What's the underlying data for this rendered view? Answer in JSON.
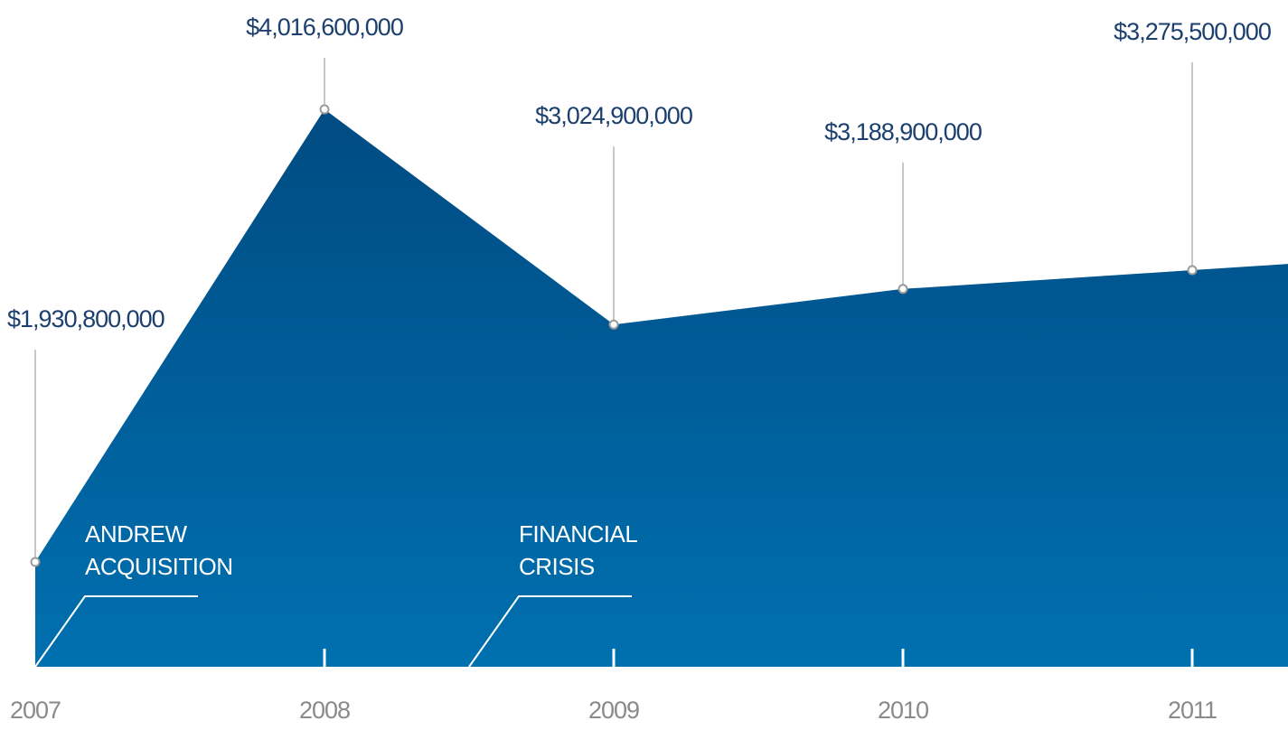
{
  "chart_data": {
    "type": "area",
    "x": [
      "2007",
      "2008",
      "2009",
      "2010",
      "2011"
    ],
    "values": [
      1930800000,
      4016600000,
      3024900000,
      3188900000,
      3275500000
    ],
    "value_labels": [
      "$1,930,800,000",
      "$4,016,600,000",
      "$3,024,900,000",
      "$3,188,900,000",
      "$3,275,500,000"
    ],
    "annotations": [
      {
        "lines": [
          "ANDREW",
          "ACQUISITION"
        ],
        "x": 2007
      },
      {
        "lines": [
          "FINANCIAL",
          "CRISIS"
        ],
        "x": 2008.5
      }
    ],
    "colors": {
      "area_top": "#004b82",
      "area_bottom": "#0070b0"
    },
    "grid": false,
    "legend": "none"
  }
}
